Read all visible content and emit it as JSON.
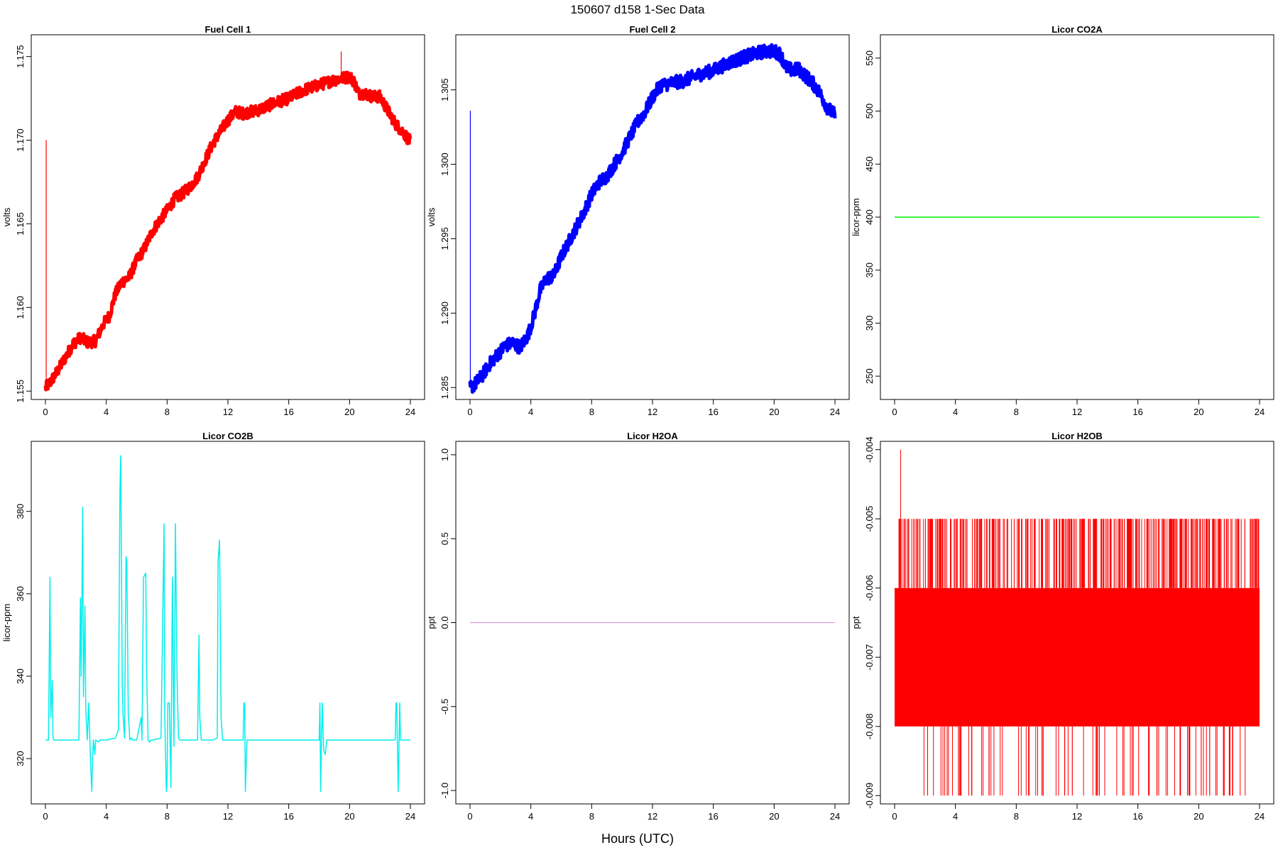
{
  "figure": {
    "title": "150607   d158   1-Sec Data",
    "xlabel": "Hours (UTC)"
  },
  "colors": {
    "fc1": "#ff0000",
    "fc2": "#0000ff",
    "co2a": "#00ee00",
    "co2b": "#00eeee",
    "h2oa": "#dd88dd",
    "h2ob": "#ff0000"
  },
  "chart_data": [
    {
      "type": "line",
      "title": "Fuel Cell 1",
      "ylabel": "volts",
      "xlim": [
        0,
        24
      ],
      "ylim": [
        1.1545,
        1.1763
      ],
      "xticks": [
        0,
        4,
        8,
        12,
        16,
        20,
        24
      ],
      "yticks": [
        1.155,
        1.16,
        1.165,
        1.17,
        1.175
      ],
      "yticklabels": [
        "1.155",
        "1.160",
        "1.165",
        "1.170",
        "1.175"
      ],
      "color_key": "fc1",
      "series": [
        {
          "x": [
            0,
            0.3,
            0.8,
            1.3,
            1.8,
            2.3,
            2.8,
            3.3,
            3.8,
            4.2,
            4.6,
            5.0,
            5.5,
            6.0,
            6.5,
            7.0,
            7.5,
            8.0,
            8.5,
            9.0,
            9.5,
            10.0,
            10.5,
            11.0,
            11.5,
            12.0,
            12.5,
            13.0,
            14.0,
            15.0,
            16.0,
            17.0,
            18.0,
            19.0,
            19.5,
            20.0,
            20.3,
            20.6,
            21.0,
            21.5,
            22.0,
            22.5,
            23.0,
            23.5,
            24.0
          ],
          "y": [
            1.1552,
            1.1555,
            1.1562,
            1.157,
            1.1578,
            1.1582,
            1.1579,
            1.158,
            1.159,
            1.1595,
            1.1608,
            1.1615,
            1.1618,
            1.1628,
            1.1635,
            1.1645,
            1.1652,
            1.1658,
            1.1665,
            1.1668,
            1.1672,
            1.1678,
            1.1688,
            1.1698,
            1.1705,
            1.1712,
            1.1717,
            1.1716,
            1.1718,
            1.1722,
            1.1725,
            1.173,
            1.1733,
            1.1736,
            1.1737,
            1.1738,
            1.1735,
            1.1728,
            1.1728,
            1.1726,
            1.1726,
            1.1718,
            1.171,
            1.1705,
            1.1699
          ],
          "noise": 0.00035,
          "width": 5,
          "spikes": [
            {
              "x": 0.05,
              "y": 1.17
            },
            {
              "x": 19.45,
              "y": 1.1753
            }
          ]
        }
      ]
    },
    {
      "type": "line",
      "title": "Fuel Cell 2",
      "ylabel": "volts",
      "xlim": [
        0,
        24
      ],
      "ylim": [
        1.2842,
        1.3087
      ],
      "xticks": [
        0,
        4,
        8,
        12,
        16,
        20,
        24
      ],
      "yticks": [
        1.285,
        1.29,
        1.295,
        1.3,
        1.305
      ],
      "yticklabels": [
        "1.285",
        "1.290",
        "1.295",
        "1.300",
        "1.305"
      ],
      "color_key": "fc2",
      "series": [
        {
          "x": [
            0,
            0.3,
            0.8,
            1.3,
            1.8,
            2.3,
            2.8,
            3.3,
            3.8,
            4.2,
            4.6,
            5.0,
            5.5,
            6.0,
            6.5,
            7.0,
            7.5,
            8.0,
            8.5,
            9.0,
            9.5,
            10.0,
            10.5,
            11.0,
            11.5,
            12.0,
            12.5,
            13.0,
            14.0,
            15.0,
            16.0,
            17.0,
            18.0,
            19.0,
            19.5,
            20.0,
            20.4,
            20.8,
            21.2,
            21.6,
            22.0,
            22.5,
            23.0,
            23.5,
            24.0
          ],
          "y": [
            1.285,
            1.2852,
            1.2858,
            1.2866,
            1.2872,
            1.2878,
            1.288,
            1.2877,
            1.2885,
            1.2898,
            1.2915,
            1.2923,
            1.2925,
            1.2938,
            1.2948,
            1.2958,
            1.2968,
            1.298,
            1.2988,
            1.2992,
            1.3,
            1.3008,
            1.3018,
            1.3028,
            1.3035,
            1.3045,
            1.3053,
            1.3054,
            1.3056,
            1.306,
            1.3063,
            1.3068,
            1.3072,
            1.3075,
            1.3076,
            1.3076,
            1.3074,
            1.3065,
            1.3063,
            1.3064,
            1.306,
            1.3055,
            1.3048,
            1.3038,
            1.3033
          ],
          "noise": 0.00045,
          "width": 5,
          "spikes": [
            {
              "x": 0.02,
              "y": 1.3036
            }
          ]
        }
      ]
    },
    {
      "type": "line",
      "title": "Licor CO2A",
      "ylabel": "licor-ppm",
      "xlim": [
        0,
        24
      ],
      "ylim": [
        228,
        572
      ],
      "xticks": [
        0,
        4,
        8,
        12,
        16,
        20,
        24
      ],
      "yticks": [
        250,
        300,
        350,
        400,
        450,
        500,
        550
      ],
      "yticklabels": [
        "250",
        "300",
        "350",
        "400",
        "450",
        "500",
        "550"
      ],
      "color_key": "co2a",
      "series": [
        {
          "x": [
            0,
            24
          ],
          "y": [
            400,
            400
          ],
          "noise": 0,
          "width": 1.5,
          "spikes": []
        }
      ]
    },
    {
      "type": "line",
      "title": "Licor CO2B",
      "ylabel": "licor-ppm",
      "xlim": [
        0,
        24
      ],
      "ylim": [
        309,
        397
      ],
      "xticks": [
        0,
        4,
        8,
        12,
        16,
        20,
        24
      ],
      "yticks": [
        320,
        340,
        360,
        380
      ],
      "yticklabels": [
        "320",
        "340",
        "360",
        "380"
      ],
      "color_key": "co2b",
      "series": [
        {
          "x": [
            0,
            0.2,
            0.3,
            0.35,
            0.45,
            0.5,
            0.55,
            0.6,
            2.2,
            2.3,
            2.35,
            2.45,
            2.5,
            2.6,
            2.65,
            2.75,
            2.85,
            2.95,
            3.05,
            3.1,
            3.15,
            3.25,
            3.3,
            3.5,
            3.6,
            4.0,
            4.6,
            4.8,
            4.9,
            4.95,
            5.05,
            5.1,
            5.2,
            5.3,
            5.35,
            5.45,
            5.55,
            5.65,
            5.75,
            5.85,
            6.0,
            6.3,
            6.35,
            6.45,
            6.6,
            6.65,
            6.75,
            6.85,
            6.95,
            7.05,
            7.6,
            7.8,
            7.85,
            7.95,
            8.0,
            8.05,
            8.15,
            8.25,
            8.35,
            8.45,
            8.55,
            8.65,
            8.75,
            8.85,
            9.0,
            10.0,
            10.1,
            10.15,
            10.25,
            10.3,
            11.0,
            11.3,
            11.35,
            11.45,
            11.55,
            11.65,
            11.75,
            12.0,
            13.0,
            13.05,
            13.1,
            13.15,
            13.25,
            13.3,
            14.0,
            16.0,
            17.5,
            17.9,
            18.0,
            18.05,
            18.1,
            18.2,
            18.3,
            18.4,
            18.5,
            18.6,
            19.0,
            21.0,
            22.8,
            23.0,
            23.05,
            23.1,
            23.2,
            23.3,
            23.35,
            23.4,
            24.0
          ],
          "y": [
            324.5,
            324.5,
            364,
            330,
            339,
            325,
            324.5,
            324.5,
            324.5,
            359,
            340,
            381,
            335,
            357,
            332,
            324.5,
            333.5,
            321,
            312,
            320,
            324.5,
            321,
            324.5,
            324,
            324.5,
            324.5,
            325,
            327,
            385,
            393.5,
            338,
            331,
            325,
            369,
            368,
            331,
            324.5,
            325,
            324.5,
            324.5,
            324.5,
            330,
            324.5,
            364,
            365,
            342,
            324.5,
            324,
            324.5,
            324.5,
            325,
            377,
            330,
            312,
            315,
            333.5,
            333.5,
            313,
            364,
            323,
            377,
            340,
            325,
            324.5,
            324.5,
            324.5,
            350,
            330,
            324.5,
            324.5,
            324.5,
            325,
            368,
            373,
            330,
            324.5,
            324.5,
            324.5,
            324.5,
            333.5,
            333.5,
            312,
            324.5,
            324.5,
            324.5,
            324.5,
            324.5,
            324.5,
            324.5,
            333.5,
            312,
            333.5,
            322,
            321,
            324.5,
            324.5,
            324.5,
            324.5,
            324.5,
            324.5,
            333.5,
            333.5,
            312,
            333.5,
            324.5,
            324.5,
            324.5
          ],
          "noise": 0,
          "width": 1.5,
          "spikes": []
        }
      ]
    },
    {
      "type": "line",
      "title": "Licor H2OA",
      "ylabel": "ppt",
      "xlim": [
        0,
        24
      ],
      "ylim": [
        -1.08,
        1.08
      ],
      "xticks": [
        0,
        4,
        8,
        12,
        16,
        20,
        24
      ],
      "yticks": [
        -1,
        -0.5,
        0,
        0.5,
        1
      ],
      "yticklabels": [
        "-1.0",
        "-0.5",
        "0.0",
        "0.5",
        "1.0"
      ],
      "color_key": "h2oa",
      "series": [
        {
          "x": [
            0,
            24
          ],
          "y": [
            0,
            0
          ],
          "noise": 0,
          "width": 1,
          "spikes": []
        }
      ]
    },
    {
      "type": "line",
      "title": "Licor H2OB",
      "ylabel": "ppt",
      "xlim": [
        0,
        24
      ],
      "ylim": [
        -0.00912,
        -0.00388
      ],
      "xticks": [
        0,
        4,
        8,
        12,
        16,
        20,
        24
      ],
      "yticks": [
        -0.009,
        -0.008,
        -0.007,
        -0.006,
        -0.005,
        -0.004
      ],
      "yticklabels": [
        "-0.009",
        "-0.008",
        "-0.007",
        "-0.006",
        "-0.005",
        "-0.004"
      ],
      "color_key": "h2ob",
      "band": {
        "x": [
          0,
          24
        ],
        "y_low": -0.008,
        "y_high": -0.006
      },
      "upper_level": -0.005,
      "lower_level": -0.009,
      "max_spike": {
        "x": 0.4,
        "y": -0.004
      },
      "series": []
    }
  ]
}
